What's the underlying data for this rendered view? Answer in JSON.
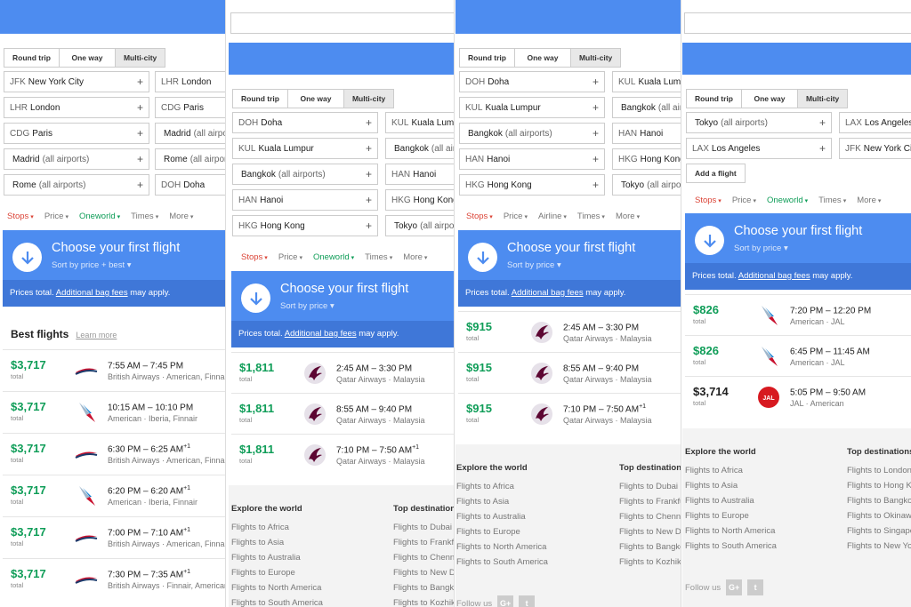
{
  "tabs": {
    "round_trip": "Round trip",
    "one_way": "One way",
    "multi_city": "Multi-city"
  },
  "filters": {
    "stops": "Stops",
    "price": "Price",
    "oneworld": "Oneworld",
    "airline": "Airline",
    "times": "Times",
    "more": "More"
  },
  "choose": {
    "title": "Choose your first flight",
    "sort_best": "Sort by price + best",
    "sort_price": "Sort by price",
    "prices_total": "Prices total.",
    "bag_fees": "Additional bag fees",
    "may_apply": "may apply."
  },
  "best_flights": {
    "title": "Best flights",
    "learn_more": "Learn more"
  },
  "total_label": "total",
  "add_flight": "Add a flight",
  "explore": {
    "title": "Explore the world",
    "items": [
      "Flights to Africa",
      "Flights to Asia",
      "Flights to Australia",
      "Flights to Europe",
      "Flights to North America",
      "Flights to South America"
    ]
  },
  "top_destinations": {
    "title": "Top destinations",
    "items": [
      "Flights to London",
      "Flights to Hong Kong",
      "Flights to Bangkok",
      "Flights to Okinawa",
      "Flights to Singapore",
      "Flights to New York"
    ]
  },
  "top_destinations_2": {
    "title": "Top destinations",
    "items": [
      "Flights to Dubai",
      "Flights to Frankfurt",
      "Flights to Chennai",
      "Flights to New Delhi",
      "Flights to Bangkok",
      "Flights to Kozhikode"
    ]
  },
  "follow_us": "Follow us",
  "colors": {
    "accent_blue": "#4d8cf0",
    "price_green": "#0f9d58",
    "stops_red": "#db4437"
  },
  "panel1": {
    "legs": [
      [
        {
          "code": "JFK",
          "city": "New York City",
          "sub": ""
        },
        {
          "code": "LHR",
          "city": "London",
          "sub": ""
        }
      ],
      [
        {
          "code": "LHR",
          "city": "London",
          "sub": ""
        },
        {
          "code": "CDG",
          "city": "Paris",
          "sub": ""
        }
      ],
      [
        {
          "code": "CDG",
          "city": "Paris",
          "sub": ""
        },
        {
          "code": "",
          "city": "Madrid",
          "sub": "(all airports)"
        }
      ],
      [
        {
          "code": "",
          "city": "Madrid",
          "sub": "(all airports)"
        },
        {
          "code": "",
          "city": "Rome",
          "sub": "(all airports)"
        }
      ],
      [
        {
          "code": "",
          "city": "Rome",
          "sub": "(all airports)"
        },
        {
          "code": "DOH",
          "city": "Doha",
          "sub": ""
        }
      ]
    ],
    "flights": [
      {
        "price": "$3,717",
        "times": "7:55 AM – 7:45 PM",
        "sup": "",
        "airlines": "British Airways · American, Finnair",
        "logo": "ba-icon"
      },
      {
        "price": "$3,717",
        "times": "10:15 AM – 10:10 PM",
        "sup": "",
        "airlines": "American · Iberia, Finnair",
        "logo": "aa-icon"
      },
      {
        "price": "$3,717",
        "times": "6:30 PM – 6:25 AM",
        "sup": "+1",
        "airlines": "British Airways · American, Finnair",
        "logo": "ba-icon"
      },
      {
        "price": "$3,717",
        "times": "6:20 PM – 6:20 AM",
        "sup": "+1",
        "airlines": "American · Iberia, Finnair",
        "logo": "aa-icon"
      },
      {
        "price": "$3,717",
        "times": "7:00 PM – 7:10 AM",
        "sup": "+1",
        "airlines": "British Airways · American, Finnair",
        "logo": "ba-icon"
      },
      {
        "price": "$3,717",
        "times": "7:30 PM – 7:35 AM",
        "sup": "+1",
        "airlines": "British Airways · Finnair, American",
        "logo": "ba-icon"
      }
    ]
  },
  "panel2": {
    "legs": [
      [
        {
          "code": "DOH",
          "city": "Doha",
          "sub": ""
        },
        {
          "code": "KUL",
          "city": "Kuala Lumpur",
          "sub": ""
        }
      ],
      [
        {
          "code": "KUL",
          "city": "Kuala Lumpur",
          "sub": ""
        },
        {
          "code": "",
          "city": "Bangkok",
          "sub": "(all airports)"
        }
      ],
      [
        {
          "code": "",
          "city": "Bangkok",
          "sub": "(all airports)"
        },
        {
          "code": "HAN",
          "city": "Hanoi",
          "sub": ""
        }
      ],
      [
        {
          "code": "HAN",
          "city": "Hanoi",
          "sub": ""
        },
        {
          "code": "HKG",
          "city": "Hong Kong",
          "sub": ""
        }
      ],
      [
        {
          "code": "HKG",
          "city": "Hong Kong",
          "sub": ""
        },
        {
          "code": "",
          "city": "Tokyo",
          "sub": "(all airports)"
        }
      ]
    ],
    "flights": [
      {
        "price": "$1,811",
        "times": "2:45 AM – 3:30 PM",
        "sup": "",
        "airlines": "Qatar Airways · Malaysia",
        "logo": "qr-icon"
      },
      {
        "price": "$1,811",
        "times": "8:55 AM – 9:40 PM",
        "sup": "",
        "airlines": "Qatar Airways · Malaysia",
        "logo": "qr-icon"
      },
      {
        "price": "$1,811",
        "times": "7:10 PM – 7:50 AM",
        "sup": "+1",
        "airlines": "Qatar Airways · Malaysia",
        "logo": "qr-icon"
      }
    ]
  },
  "panel3": {
    "flights": [
      {
        "price": "$915",
        "times": "2:45 AM – 3:30 PM",
        "sup": "",
        "airlines": "Qatar Airways · Malaysia",
        "logo": "qr-icon"
      },
      {
        "price": "$915",
        "times": "8:55 AM – 9:40 PM",
        "sup": "",
        "airlines": "Qatar Airways · Malaysia",
        "logo": "qr-icon"
      },
      {
        "price": "$915",
        "times": "7:10 PM – 7:50 AM",
        "sup": "+1",
        "airlines": "Qatar Airways · Malaysia",
        "logo": "qr-icon"
      }
    ]
  },
  "panel4": {
    "legs": [
      [
        {
          "code": "",
          "city": "Tokyo",
          "sub": "(all airports)"
        },
        {
          "code": "LAX",
          "city": "Los Angeles",
          "sub": ""
        }
      ],
      [
        {
          "code": "LAX",
          "city": "Los Angeles",
          "sub": ""
        },
        {
          "code": "JFK",
          "city": "New York City",
          "sub": ""
        }
      ]
    ],
    "flights": [
      {
        "price": "$826",
        "times": "7:20 PM – 12:20 PM",
        "sup": "",
        "airlines": "American · JAL",
        "logo": "aa-icon",
        "black": false
      },
      {
        "price": "$826",
        "times": "6:45 PM – 11:45 AM",
        "sup": "",
        "airlines": "American · JAL",
        "logo": "aa-icon",
        "black": false
      },
      {
        "price": "$3,714",
        "times": "5:05 PM – 9:50 AM",
        "sup": "",
        "airlines": "JAL · American",
        "logo": "jal-icon",
        "black": true
      }
    ]
  }
}
